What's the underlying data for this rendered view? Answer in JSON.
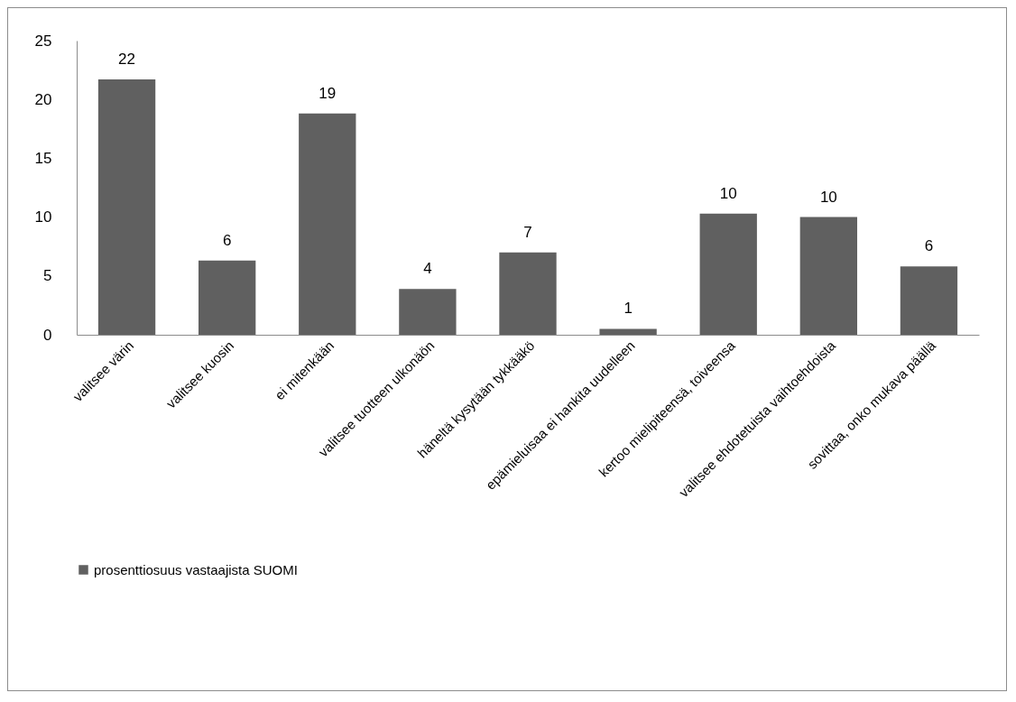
{
  "chart_data": {
    "type": "bar",
    "categories": [
      "valitsee värin",
      "valitsee kuosin",
      "ei mitenkään",
      "valitsee tuotteen ulkonäön",
      "häneltä kysytään tykkääkö",
      "epämieluisaa ei hankita uudelleen",
      "kertoo mielipiteensä, toiveensa",
      "valitsee ehdotetuista vaihtoehdoista",
      "sovittaa, onko mukava päällä"
    ],
    "series": [
      {
        "name": "prosenttiosuus vastaajista SUOMI",
        "color": "#606060",
        "values": [
          21.7,
          6.3,
          18.8,
          3.9,
          7.0,
          0.5,
          10.3,
          10.0,
          5.8
        ],
        "value_labels": [
          "22",
          "6",
          "19",
          "4",
          "7",
          "1",
          "10",
          "10",
          "6"
        ]
      }
    ],
    "ylim": [
      0,
      25
    ],
    "yticks": [
      0,
      5,
      10,
      15,
      20,
      25
    ],
    "grid": false,
    "legend": "bottom"
  }
}
